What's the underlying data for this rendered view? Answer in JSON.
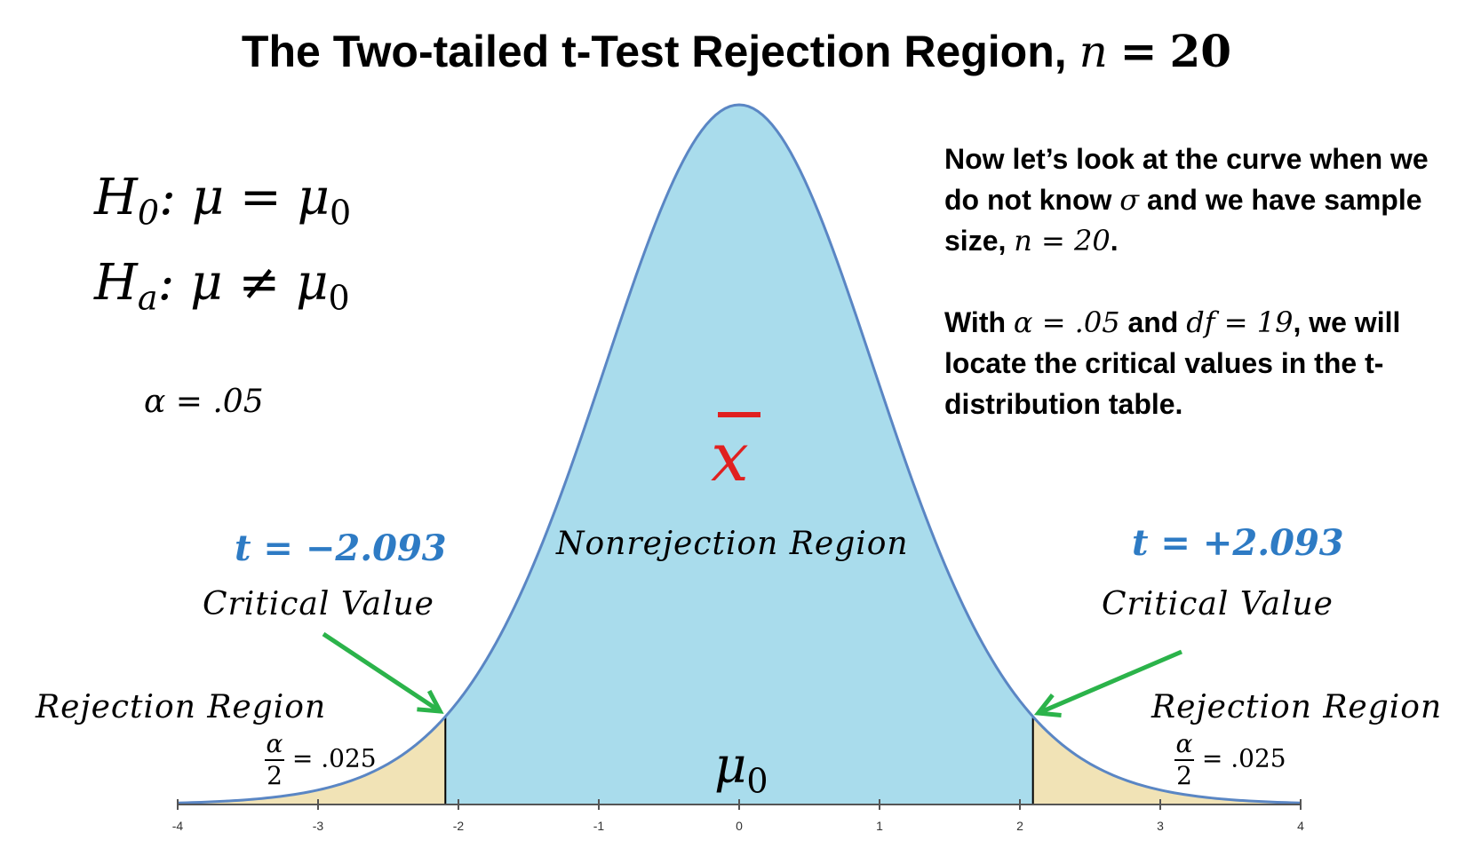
{
  "title": {
    "text": "The Two-tailed t-Test Rejection Region,",
    "math_lhs": "n",
    "math_eq": "=",
    "math_rhs": "20"
  },
  "hypotheses": {
    "h0": {
      "symbol": "H",
      "sub": "0",
      "body": ": μ = μ",
      "rhs_sub": "0"
    },
    "ha": {
      "symbol": "H",
      "sub": "a",
      "body": ": μ ≠ μ",
      "rhs_sub": "0"
    }
  },
  "alpha_label": "α = .05",
  "description": {
    "line1": "Now let’s look at the curve when we",
    "line2_a": "do not know ",
    "line2_sigma": "σ",
    "line2_b": " and we have sample",
    "line3_a": "size, ",
    "line3_math": "n = 20",
    "line3_b": ".",
    "line4_a": "With ",
    "line4_alpha": "α = .05",
    "line4_b": " and ",
    "line4_df": "df = 19",
    "line4_c": ", we will",
    "line5": "locate the critical values in the t-",
    "line6": "distribution table."
  },
  "sample_mean_symbol": "x",
  "nonrejection_label": "Nonrejection Region",
  "left": {
    "t_label": "t = −2.093",
    "critical_label": "Critical Value",
    "rejection_label": "Rejection Region",
    "frac_num": "α",
    "frac_den": "2",
    "area_value": "= .025"
  },
  "right": {
    "t_label": "t = +2.093",
    "critical_label": "Critical Value",
    "rejection_label": "Rejection Region",
    "frac_num": "α",
    "frac_den": "2",
    "area_value": "= .025"
  },
  "center_label": {
    "symbol": "μ",
    "sub": "0"
  },
  "chart_data": {
    "type": "area",
    "distribution": "t",
    "df": 19,
    "critical_values": [
      -2.093,
      2.093
    ],
    "xlim": [
      -4,
      4
    ],
    "ticks": [
      -4,
      -3,
      -2,
      -1,
      0,
      1,
      2,
      3,
      4
    ],
    "colors": {
      "nonrejection_fill": "#a9dcec",
      "rejection_fill": "#f1e3b6",
      "curve_stroke": "#5a86c4",
      "arrow": "#2bb34a",
      "critical_text": "#2e7bc4",
      "xbar": "#e02020"
    }
  }
}
